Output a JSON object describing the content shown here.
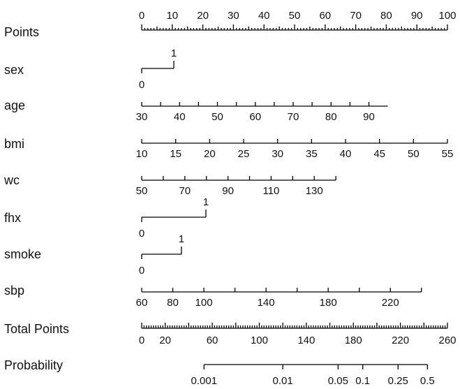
{
  "chart_data": {
    "type": "nomogram",
    "rows": [
      {
        "key": "points",
        "label": "Points",
        "range": [
          0,
          100
        ],
        "ticks": [
          0,
          10,
          20,
          30,
          40,
          50,
          60,
          70,
          80,
          90,
          100
        ],
        "minor_step": 1,
        "mid_step": 5
      },
      {
        "key": "sex",
        "label": "sex",
        "categories": [
          {
            "label": "0",
            "points": 0
          },
          {
            "label": "1",
            "points": 10.5
          }
        ]
      },
      {
        "key": "age",
        "label": "age",
        "ticks": [
          30,
          40,
          50,
          60,
          70,
          80,
          90
        ],
        "minor_ticks": [
          35,
          45,
          55,
          65,
          75,
          85
        ],
        "range": [
          30,
          95
        ],
        "points_range": [
          0,
          80.5
        ]
      },
      {
        "key": "bmi",
        "label": "bmi",
        "ticks": [
          10,
          15,
          20,
          25,
          30,
          35,
          40,
          45,
          50,
          55
        ],
        "range": [
          10,
          55
        ],
        "points_range": [
          0,
          100
        ]
      },
      {
        "key": "wc",
        "label": "wc",
        "ticks": [
          50,
          70,
          90,
          110,
          130
        ],
        "minor_ticks": [
          60,
          80,
          100,
          120,
          140
        ],
        "range": [
          50,
          140
        ],
        "points_range": [
          0,
          63.5
        ]
      },
      {
        "key": "fhx",
        "label": "fhx",
        "categories": [
          {
            "label": "0",
            "points": 0
          },
          {
            "label": "1",
            "points": 21
          }
        ]
      },
      {
        "key": "smoke",
        "label": "smoke",
        "categories": [
          {
            "label": "0",
            "points": 0
          },
          {
            "label": "1",
            "points": 13
          }
        ]
      },
      {
        "key": "sbp",
        "label": "sbp",
        "ticks": [
          60,
          80,
          100,
          140,
          180,
          220
        ],
        "minor_ticks": [
          120,
          160,
          200,
          240
        ],
        "range": [
          60,
          240
        ],
        "points_range": [
          0,
          91.5
        ]
      },
      {
        "key": "total_points",
        "label": "Total Points",
        "ticks": [
          0,
          20,
          60,
          100,
          140,
          180,
          220,
          260
        ],
        "minor_ticks": [
          40,
          80,
          120,
          160,
          200,
          240
        ],
        "range": [
          0,
          260
        ],
        "minor_step": 2
      },
      {
        "key": "probability",
        "label": "Probability",
        "ticks": [
          {
            "label": "0.001",
            "value": 0.001,
            "total_points": 53
          },
          {
            "label": "0.01",
            "value": 0.01,
            "total_points": 120
          },
          {
            "label": "0.05",
            "value": 0.05,
            "total_points": 167
          },
          {
            "label": "0.1",
            "value": 0.1,
            "total_points": 188
          },
          {
            "label": "0.25",
            "value": 0.25,
            "total_points": 218
          },
          {
            "label": "0.5",
            "value": 0.5,
            "total_points": 243
          }
        ]
      }
    ]
  }
}
